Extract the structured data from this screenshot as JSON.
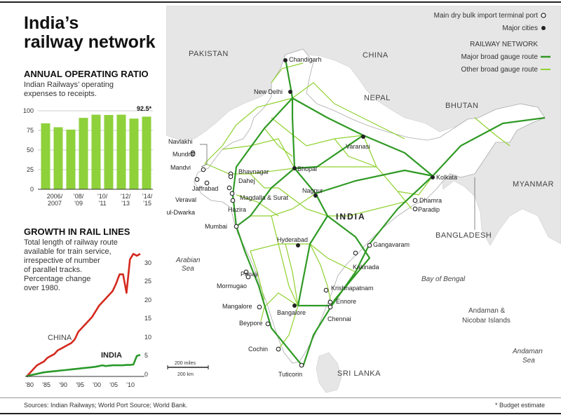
{
  "title_line1": "India’s",
  "title_line2": "railway network",
  "ratio": {
    "title": "ANNUAL OPERATING RATIO",
    "desc_lines": [
      "Indian Railways’ operating",
      "expenses to receipts."
    ],
    "y_ticks": [
      "100",
      "75",
      "50",
      "25",
      "0"
    ],
    "x_ticks": [
      [
        "2006/",
        "2007"
      ],
      [
        "’08/",
        "’09"
      ],
      [
        "’10/",
        "’11"
      ],
      [
        "’12/",
        "’13"
      ],
      [
        "’14/",
        "’15"
      ]
    ],
    "last_label": "92.5*"
  },
  "growth": {
    "title": "GROWTH IN RAIL LINES",
    "desc_lines": [
      "Total length of railway route",
      "available for train service,",
      "irrespective of number",
      "of parallel tracks.",
      "Percentage change",
      "over 1980."
    ],
    "y_ticks": [
      "30",
      "25",
      "20",
      "15",
      "10",
      "5",
      "0"
    ],
    "x_ticks": [
      "’80",
      "’85",
      "’90",
      "’95",
      "’00",
      "’05",
      "’10"
    ],
    "china_label": "CHINA",
    "india_label": "INDIA"
  },
  "chart_data": [
    {
      "type": "bar",
      "title": "ANNUAL OPERATING RATIO",
      "categories": [
        "2006/2007",
        "2007/2008",
        "2008/2009",
        "2009/2010",
        "2010/2011",
        "2011/2012",
        "2012/2013",
        "2013/2014",
        "2014/2015"
      ],
      "values": [
        84,
        79,
        76,
        91,
        95,
        94.6,
        95,
        90,
        92.5
      ],
      "ylim": [
        0,
        100
      ],
      "color": "#8ed13b"
    },
    {
      "type": "line",
      "title": "GROWTH IN RAIL LINES",
      "x": [
        1980,
        1981,
        1982,
        1983,
        1984,
        1985,
        1986,
        1987,
        1988,
        1989,
        1990,
        1991,
        1992,
        1993,
        1994,
        1995,
        1996,
        1997,
        1998,
        1999,
        2000,
        2001,
        2002,
        2003,
        2004,
        2005,
        2006,
        2007,
        2008,
        2009,
        2010,
        2011,
        2012,
        2013
      ],
      "series": [
        {
          "name": "CHINA",
          "color": "#d42a1e",
          "values": [
            0,
            1,
            2,
            3,
            3.5,
            4,
            5,
            5.5,
            6,
            7,
            7.5,
            8,
            8.5,
            9,
            10,
            12,
            13,
            14,
            15,
            16,
            17.5,
            19,
            20,
            21,
            22,
            23,
            25,
            27.5,
            27.5,
            22.5,
            31.5,
            33,
            32.5,
            33
          ]
        },
        {
          "name": "INDIA",
          "color": "#2a9a2a",
          "values": [
            0,
            0.3,
            0.5,
            0.7,
            0.9,
            1.1,
            1.2,
            1.3,
            1.4,
            1.5,
            1.6,
            1.7,
            1.8,
            1.9,
            2.0,
            2.1,
            2.2,
            2.3,
            2.4,
            2.5,
            2.6,
            2.8,
            3.0,
            2.8,
            2.9,
            3.0,
            3.0,
            3.0,
            3.0,
            3.1,
            3.1,
            3.2,
            5.5,
            5.8
          ]
        }
      ],
      "ylim": [
        0,
        35
      ]
    }
  ],
  "map": {
    "legend": {
      "port": "Main dry bulk import terminal port",
      "city": "Major cities",
      "network_title": "RAILWAY NETWORK",
      "major": "Major broad gauge route",
      "other": "Other broad gauge route"
    },
    "regions": [
      "PAKISTAN",
      "CHINA",
      "NEPAL",
      "BHUTAN",
      "MYANMAR",
      "BANGLADESH",
      "INDIA",
      "SRI LANKA"
    ],
    "seas": [
      [
        "Arabian",
        "Sea"
      ],
      [
        "Bay of Bengal"
      ],
      [
        "Andaman &",
        "Nicobar Islands"
      ],
      [
        "Andaman",
        "Sea"
      ]
    ],
    "cities": [
      "Chandigarh",
      "New Delhi",
      "Varanasi",
      "Bhopal",
      "Kolkata",
      "Nagpur",
      "Hyderabad",
      "Bangalore"
    ],
    "ports": [
      "Navlakhi",
      "Mundra",
      "Mandvi",
      "Bhavnagar",
      "Dahej",
      "Jaffrabad",
      "Veraval",
      "Mul-Dwarka",
      "Magdalla & Surat",
      "Hazira",
      "Mumbai",
      "Dhamra",
      "Paradip",
      "Gangavaram",
      "Kakinada",
      "Panaji",
      "Mormugao",
      "Krishnapatnam",
      "Ennore",
      "Chennai",
      "Mangalore",
      "Beypore",
      "Cochin",
      "Tuticorin"
    ],
    "scale_miles": "200 miles",
    "scale_km": "200 km",
    "colors": {
      "land": "#e6e6e6",
      "india": "#ffffff",
      "major": "#2f9a24",
      "other": "#8fd12f",
      "border": "#bbbbbb"
    }
  },
  "footer": {
    "sources": "Sources: Indian Railways; World Port Source; World Bank.",
    "note": "* Budget estimate"
  }
}
